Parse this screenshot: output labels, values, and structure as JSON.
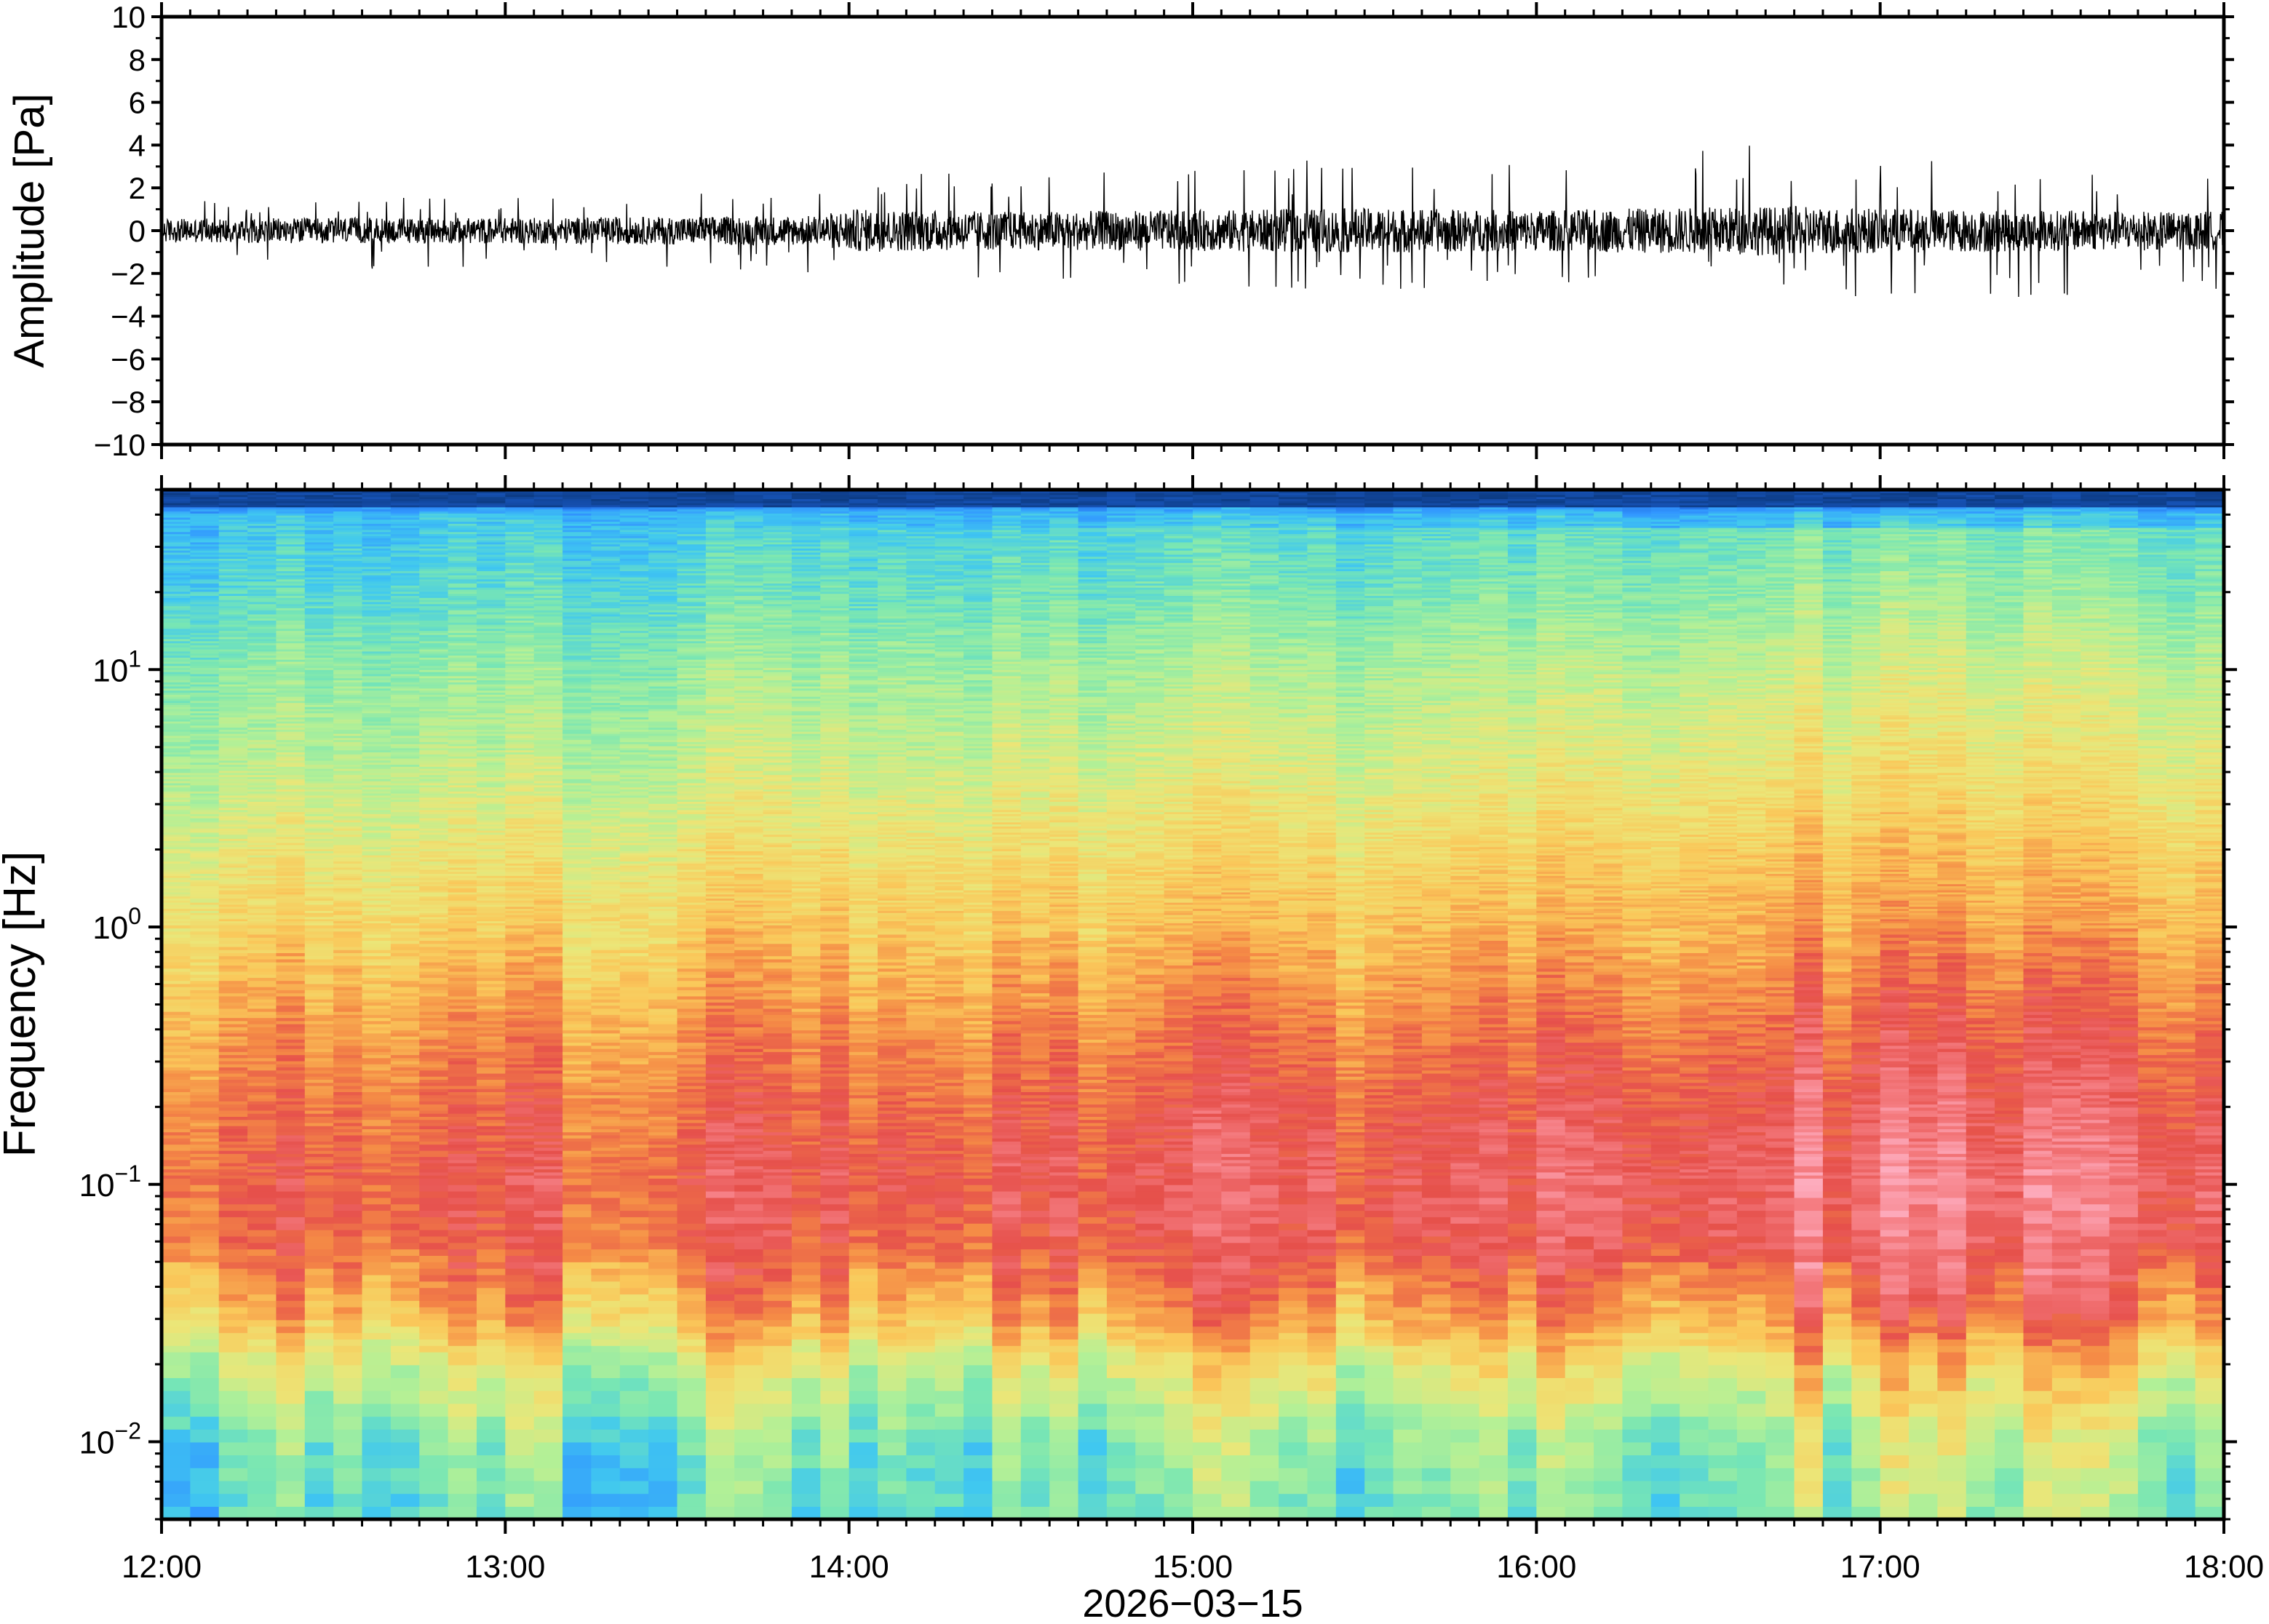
{
  "chart_data": [
    {
      "type": "line",
      "ylabel": "Amplitude [Pa]",
      "xlim": [
        "12:00",
        "18:00"
      ],
      "ylim": [
        -10,
        10
      ],
      "y_ticks": [
        10,
        8,
        6,
        4,
        2,
        0,
        -2,
        -4,
        -6,
        -8,
        -10
      ],
      "y_tick_labels": [
        "10",
        "8",
        "6",
        "4",
        "2",
        "0",
        "−2",
        "−4",
        "−6",
        "−8",
        "−10"
      ],
      "series": [
        {
          "color": "#000000",
          "envelope_hours": [
            12.0,
            12.5,
            13.0,
            13.5,
            13.9,
            14.0,
            14.5,
            15.0,
            15.5,
            16.0,
            16.5,
            16.7,
            17.0,
            17.5,
            18.0
          ],
          "envelope_max": [
            1.4,
            1.6,
            1.5,
            1.8,
            2.0,
            3.2,
            2.8,
            3.0,
            3.6,
            3.0,
            4.4,
            4.8,
            3.6,
            3.0,
            2.8
          ],
          "envelope_min": [
            -1.5,
            -1.8,
            -1.7,
            -1.8,
            -2.0,
            -3.0,
            -2.6,
            -2.8,
            -2.8,
            -2.6,
            -2.8,
            -3.0,
            -3.2,
            -3.2,
            -2.8
          ],
          "typical_abs": [
            0.55,
            0.6,
            0.6,
            0.65,
            0.7,
            1.0,
            0.9,
            0.95,
            1.05,
            0.95,
            1.1,
            1.15,
            1.05,
            0.95,
            0.9
          ]
        }
      ],
      "grid": false
    },
    {
      "type": "heatmap",
      "ylabel": "Frequency [Hz]",
      "xlabel": "2026−03−15",
      "xlim": [
        "12:00",
        "18:00"
      ],
      "x_tick_labels": [
        "12:00",
        "13:00",
        "14:00",
        "15:00",
        "16:00",
        "17:00",
        "18:00"
      ],
      "y_scale": "log",
      "ylim": [
        0.005,
        50
      ],
      "y_ticks": [
        0.01,
        0.1,
        1,
        10
      ],
      "y_tick_labels": [
        {
          "base": "10",
          "exp": "−2"
        },
        {
          "base": "10",
          "exp": "−1"
        },
        {
          "base": "10",
          "exp": "0"
        },
        {
          "base": "10",
          "exp": "1"
        }
      ],
      "colormap": [
        "#08306b",
        "#1e64dc",
        "#3296ff",
        "#40c8f0",
        "#78e6b4",
        "#b4f096",
        "#ebe678",
        "#fac85a",
        "#f58c46",
        "#e6504b",
        "#f57d82",
        "#ffb4c8"
      ],
      "relative_level_by_log10_freq": {
        "log10_hz": [
          -2.3,
          -2.0,
          -1.7,
          -1.5,
          -1.2,
          -1.0,
          -0.7,
          -0.4,
          0.0,
          0.3,
          0.6,
          1.0,
          1.3,
          1.6,
          1.68
        ],
        "level": [
          0.32,
          0.36,
          0.5,
          0.66,
          0.78,
          0.8,
          0.76,
          0.7,
          0.6,
          0.54,
          0.47,
          0.4,
          0.32,
          0.26,
          0.05
        ]
      },
      "time_trend_hours": [
        12.0,
        13.0,
        14.0,
        15.0,
        15.5,
        16.0,
        16.5,
        17.0,
        17.5,
        18.0
      ],
      "time_trend_level": [
        0.0,
        0.0,
        0.04,
        0.04,
        0.05,
        0.06,
        0.1,
        0.1,
        0.08,
        0.07
      ],
      "grid": false
    }
  ]
}
